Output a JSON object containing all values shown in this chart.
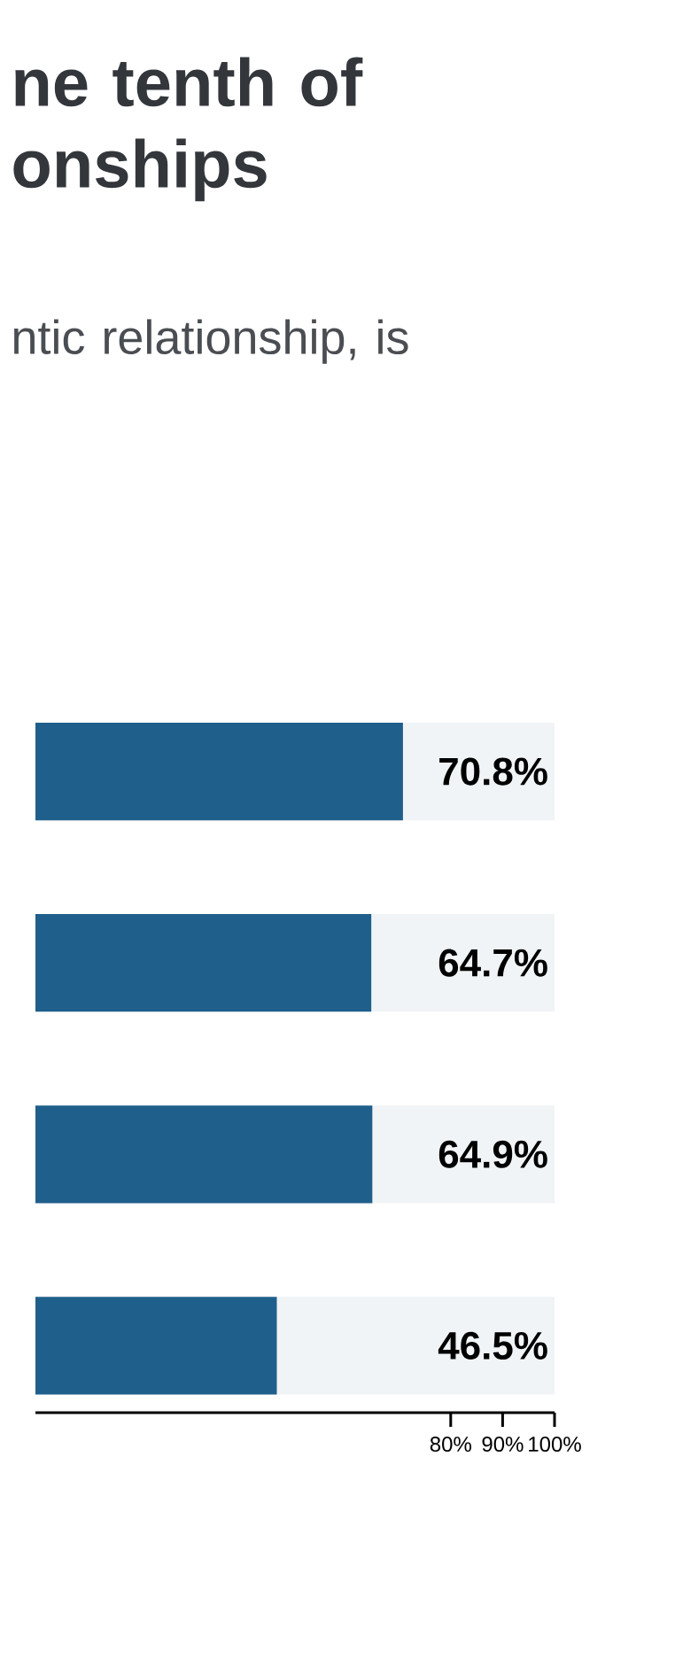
{
  "chart_data": {
    "type": "bar",
    "orientation": "horizontal",
    "title": "ne tenth of onships",
    "subtitle": "ntic relationship, is",
    "categories": [
      null,
      null,
      null,
      null
    ],
    "values": [
      70.8,
      64.7,
      64.9,
      46.5
    ],
    "value_labels": [
      "70.8%",
      "64.7%",
      "64.9%",
      "46.5%"
    ],
    "color": "#1f5f8b",
    "xlim": [
      0,
      100
    ],
    "xticks": [
      {
        "value": 80,
        "label": "80%"
      },
      {
        "value": 90,
        "label": "90%"
      },
      {
        "value": 100,
        "label": "100%"
      }
    ],
    "grid": false
  }
}
